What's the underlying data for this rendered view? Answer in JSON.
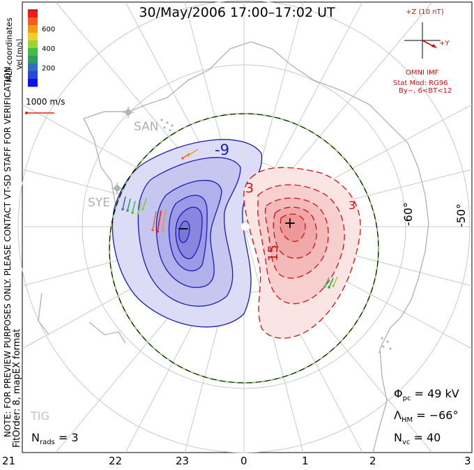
{
  "title": "30/May/2006 17:00–17:02 UT",
  "coordinates": "MLT coordinates",
  "note": "NOTE: FOR PREVIEW PURPOSES ONLY. PLEASE CONTACT VT-SD STAFF FOR VERIFICATION.",
  "fit_info": "FitOrder: 8, mapEX format",
  "velocity_scale": {
    "label": "Vel [m/s]",
    "ticks": [
      "600",
      "400",
      "200"
    ],
    "colors": [
      "#ee1b1b",
      "#f0601a",
      "#f39a1c",
      "#f3cd22",
      "#96d438",
      "#3fbf4a",
      "#2f9a6a",
      "#3470b7",
      "#2548d6",
      "#1010e8"
    ],
    "reference_vector": "1000 m/s"
  },
  "imf": {
    "z_label": "+Z (10 nT)",
    "y_label": "+Y",
    "source": "OMNI IMF",
    "model": "Stat Mod: RG96",
    "condition": "By−, 6<BT<12"
  },
  "stations": [
    "SAN",
    "SYE",
    "TIG"
  ],
  "latitude_labels": [
    "-60°",
    "-50°"
  ],
  "mlt_hours": [
    "21",
    "22",
    "23",
    "0",
    "1",
    "2",
    "3"
  ],
  "contour_labels": {
    "negative": "-9",
    "positive_a": "3",
    "positive_b": "15",
    "positive_c": "3"
  },
  "potential_extrema": {
    "min": "−",
    "max": "+"
  },
  "stats": {
    "nrads_sym": "N",
    "nrads_sub": "rads",
    "nrads_val": "= 3",
    "phi_sym": "Φ",
    "phi_sub": "pc",
    "phi_val": "= 49 kV",
    "lambda_sym": "Λ",
    "lambda_sub": "HM",
    "lambda_val": "= −66°",
    "nvc_sym": "N",
    "nvc_sub": "vc",
    "nvc_val": "= 40"
  },
  "colors": {
    "negative_contour": "#1a1ab4",
    "positive_contour": "#cc1111",
    "grid": "#c8c8c8",
    "coast": "#b4b4b4"
  }
}
